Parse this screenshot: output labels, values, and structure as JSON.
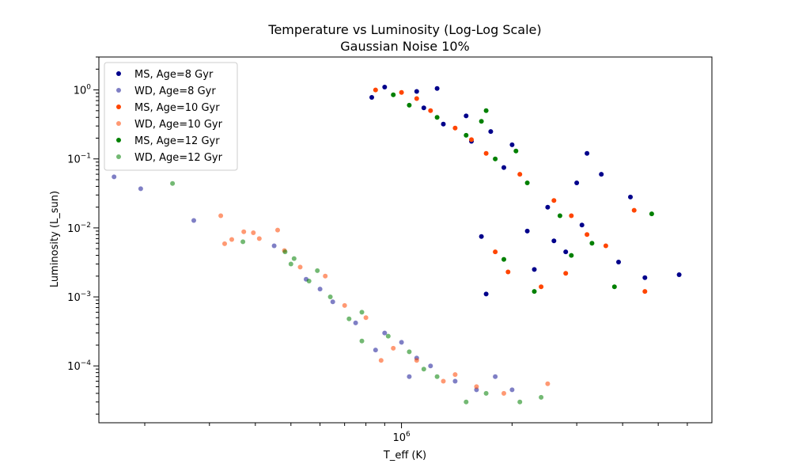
{
  "chart_data": {
    "type": "scatter",
    "title": "Temperature vs Luminosity (Log-Log Scale)",
    "subtitle": "Gaussian Noise 10%",
    "xlabel": "T_eff (K)",
    "ylabel": "Luminosity (L_sun)",
    "xscale": "log",
    "yscale": "log",
    "xlim": [
      150000,
      7000000
    ],
    "ylim": [
      1.5e-05,
      3.0
    ],
    "x_major_ticks": [
      {
        "value": 1000000,
        "label": "10^6"
      }
    ],
    "x_minor_ticks": [
      200000,
      300000,
      400000,
      500000,
      600000,
      700000,
      800000,
      900000,
      2000000,
      3000000,
      4000000,
      5000000,
      6000000
    ],
    "y_major_ticks": [
      {
        "value": 0.0001,
        "label": "10^-4"
      },
      {
        "value": 0.001,
        "label": "10^-3"
      },
      {
        "value": 0.01,
        "label": "10^-2"
      },
      {
        "value": 0.1,
        "label": "10^-1"
      },
      {
        "value": 1,
        "label": "10^0"
      }
    ],
    "grid": false,
    "legend_position": "top-left",
    "series": [
      {
        "name": "MS, Age=8 Gyr",
        "color": "#00008b",
        "alpha": 1.0,
        "points": [
          [
            900000,
            1.1
          ],
          [
            830000,
            0.78
          ],
          [
            1150000,
            0.55
          ],
          [
            1300000,
            0.32
          ],
          [
            1550000,
            0.18
          ],
          [
            1900000,
            0.075
          ],
          [
            2500000,
            0.02
          ],
          [
            3100000,
            0.011
          ],
          [
            4200000,
            0.028
          ],
          [
            5700000,
            0.0021
          ],
          [
            2800000,
            0.0045
          ],
          [
            1700000,
            0.0011
          ],
          [
            2300000,
            0.0025
          ],
          [
            3900000,
            0.0032
          ],
          [
            2000000,
            0.16
          ],
          [
            3500000,
            0.06
          ],
          [
            3200000,
            0.12
          ],
          [
            4600000,
            0.0019
          ],
          [
            1100000,
            0.95
          ],
          [
            1250000,
            1.05
          ],
          [
            1500000,
            0.42
          ],
          [
            1750000,
            0.25
          ],
          [
            2200000,
            0.009
          ],
          [
            2600000,
            0.0065
          ],
          [
            1650000,
            0.0075
          ],
          [
            3000000,
            0.045
          ]
        ]
      },
      {
        "name": "WD, Age=8 Gyr",
        "color": "#00008b",
        "alpha": 0.5,
        "points": [
          [
            165000,
            0.055
          ],
          [
            195000,
            0.037
          ],
          [
            272000,
            0.0128
          ],
          [
            450000,
            0.0055
          ],
          [
            550000,
            0.0018
          ],
          [
            600000,
            0.0013
          ],
          [
            650000,
            0.00085
          ],
          [
            750000,
            0.00042
          ],
          [
            900000,
            0.0003
          ],
          [
            1000000,
            0.00022
          ],
          [
            1100000,
            0.00013
          ],
          [
            1200000,
            0.0001
          ],
          [
            1400000,
            6e-05
          ],
          [
            1600000,
            4.5e-05
          ],
          [
            1800000,
            7e-05
          ],
          [
            2000000,
            4.5e-05
          ],
          [
            850000,
            0.00017
          ],
          [
            1050000,
            7e-05
          ]
        ]
      },
      {
        "name": "MS, Age=10 Gyr",
        "color": "#ff4500",
        "alpha": 1.0,
        "points": [
          [
            850000,
            1.0
          ],
          [
            1000000,
            0.92
          ],
          [
            1200000,
            0.5
          ],
          [
            1400000,
            0.28
          ],
          [
            1700000,
            0.12
          ],
          [
            2100000,
            0.06
          ],
          [
            2600000,
            0.025
          ],
          [
            3200000,
            0.008
          ],
          [
            4300000,
            0.018
          ],
          [
            4600000,
            0.0012
          ],
          [
            2400000,
            0.0014
          ],
          [
            1800000,
            0.0045
          ],
          [
            2800000,
            0.0022
          ],
          [
            3600000,
            0.0055
          ],
          [
            1550000,
            0.19
          ],
          [
            2900000,
            0.015
          ],
          [
            1950000,
            0.0023
          ],
          [
            1100000,
            0.75
          ]
        ]
      },
      {
        "name": "WD, Age=10 Gyr",
        "color": "#ff4500",
        "alpha": 0.55,
        "points": [
          [
            322000,
            0.015
          ],
          [
            330000,
            0.0059
          ],
          [
            345000,
            0.0068
          ],
          [
            372000,
            0.0088
          ],
          [
            395000,
            0.0085
          ],
          [
            410000,
            0.007
          ],
          [
            460000,
            0.0093
          ],
          [
            480000,
            0.0047
          ],
          [
            530000,
            0.0027
          ],
          [
            620000,
            0.002
          ],
          [
            700000,
            0.00075
          ],
          [
            800000,
            0.0005
          ],
          [
            950000,
            0.00018
          ],
          [
            1100000,
            0.00012
          ],
          [
            1300000,
            6e-05
          ],
          [
            1600000,
            5e-05
          ],
          [
            1900000,
            4e-05
          ],
          [
            2500000,
            5.5e-05
          ],
          [
            880000,
            0.00012
          ],
          [
            1400000,
            7.5e-05
          ]
        ]
      },
      {
        "name": "MS, Age=12 Gyr",
        "color": "#008000",
        "alpha": 1.0,
        "points": [
          [
            950000,
            0.85
          ],
          [
            1050000,
            0.6
          ],
          [
            1250000,
            0.4
          ],
          [
            1500000,
            0.22
          ],
          [
            1800000,
            0.1
          ],
          [
            2200000,
            0.045
          ],
          [
            2700000,
            0.015
          ],
          [
            3300000,
            0.006
          ],
          [
            4800000,
            0.016
          ],
          [
            3800000,
            0.0014
          ],
          [
            2300000,
            0.0012
          ],
          [
            1900000,
            0.0035
          ],
          [
            2900000,
            0.004
          ],
          [
            1650000,
            0.35
          ],
          [
            2050000,
            0.13
          ],
          [
            1700000,
            0.5
          ]
        ]
      },
      {
        "name": "WD, Age=12 Gyr",
        "color": "#008000",
        "alpha": 0.55,
        "points": [
          [
            238000,
            0.044
          ],
          [
            370000,
            0.0063
          ],
          [
            482000,
            0.0045
          ],
          [
            500000,
            0.003
          ],
          [
            510000,
            0.0036
          ],
          [
            560000,
            0.0017
          ],
          [
            590000,
            0.0024
          ],
          [
            640000,
            0.001
          ],
          [
            720000,
            0.00048
          ],
          [
            780000,
            0.0006
          ],
          [
            920000,
            0.00027
          ],
          [
            1050000,
            0.00016
          ],
          [
            1250000,
            7e-05
          ],
          [
            1500000,
            3e-05
          ],
          [
            1700000,
            4e-05
          ],
          [
            2100000,
            3e-05
          ],
          [
            2400000,
            3.5e-05
          ],
          [
            780000,
            0.00023
          ],
          [
            1150000,
            9e-05
          ]
        ]
      }
    ]
  }
}
